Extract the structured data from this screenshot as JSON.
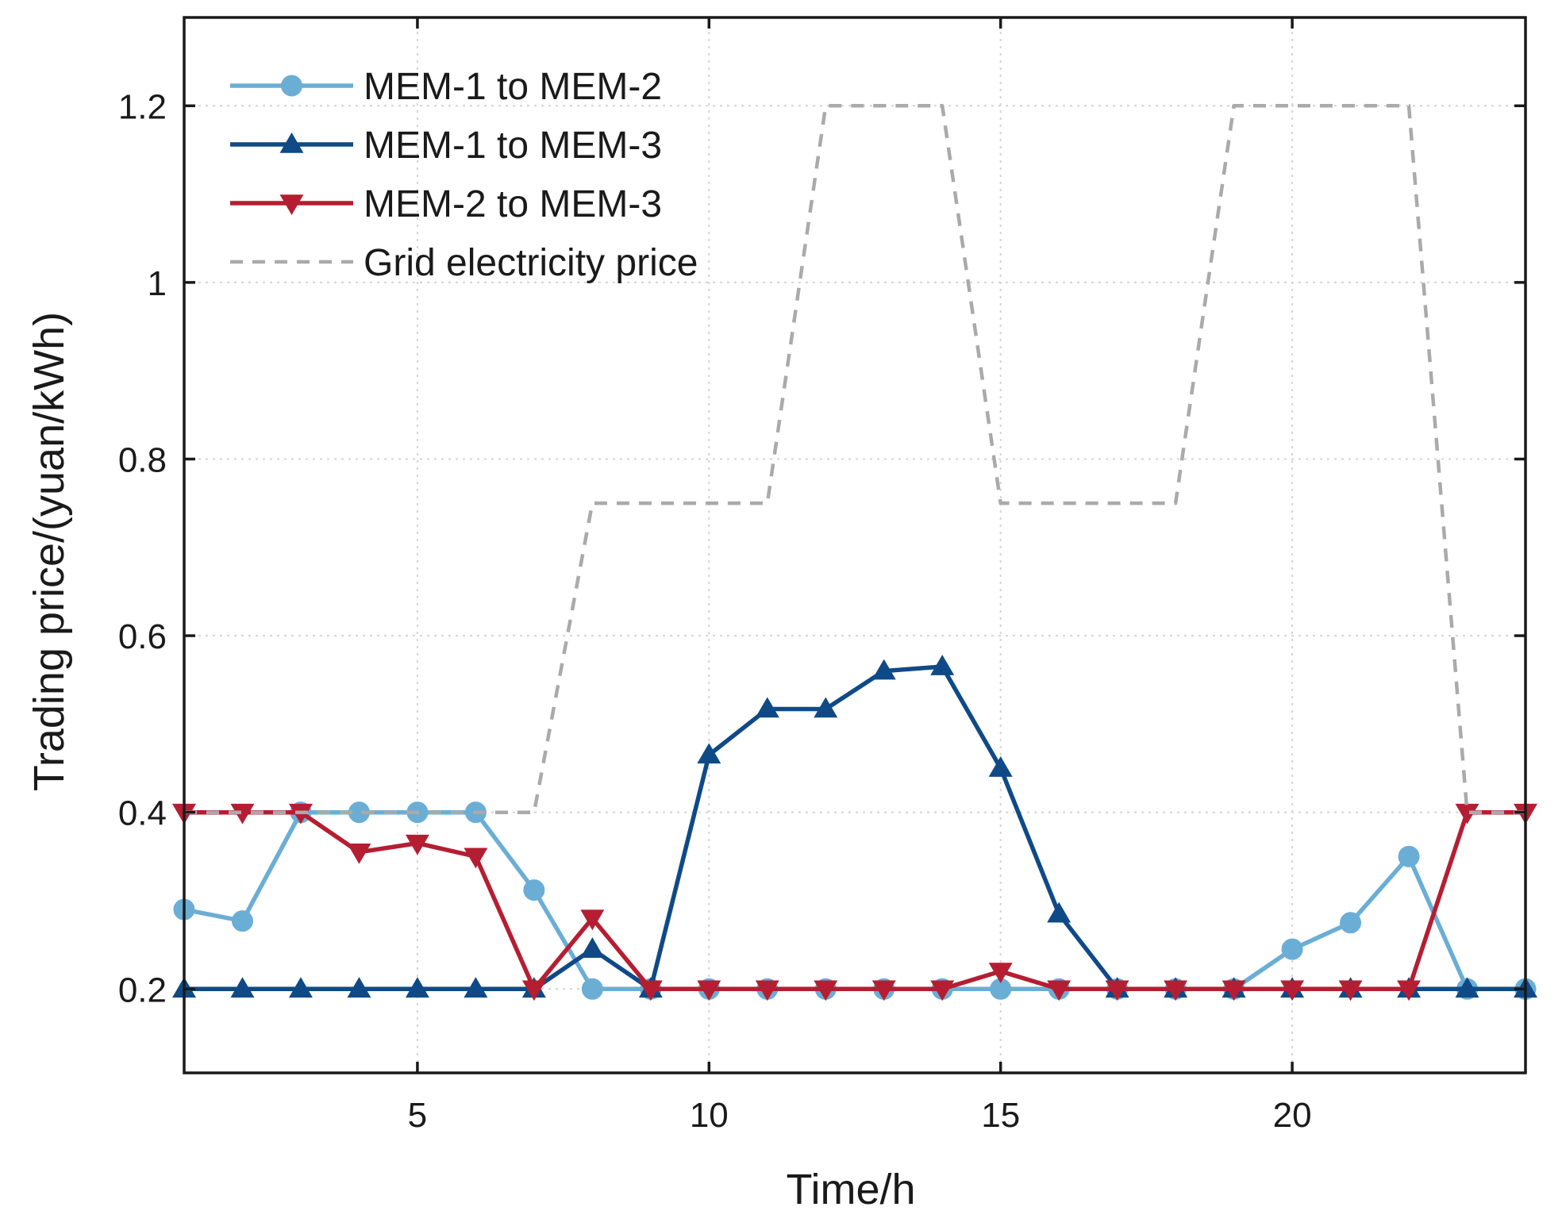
{
  "chart_data": {
    "type": "line",
    "title": "",
    "xlabel": "Time/h",
    "ylabel": "Trading price/(yuan/kWh)",
    "xlim": [
      1,
      24
    ],
    "ylim": [
      0.105,
      1.3
    ],
    "xticks": [
      5,
      10,
      15,
      20
    ],
    "yticks": [
      0.2,
      0.4,
      0.6,
      0.8,
      1,
      1.2
    ],
    "ytick_labels": [
      "0.2",
      "0.4",
      "0.6",
      "0.8",
      "1",
      "1.2"
    ],
    "grid": true,
    "legend_position": "top-left",
    "x": [
      1,
      2,
      3,
      4,
      5,
      6,
      7,
      8,
      9,
      10,
      11,
      12,
      13,
      14,
      15,
      16,
      17,
      18,
      19,
      20,
      21,
      22,
      23,
      24
    ],
    "series": [
      {
        "name": "MEM-1 to MEM-2",
        "color": "#6AAED6",
        "marker": "circle",
        "style": "solid",
        "values": [
          0.29,
          0.277,
          0.4,
          0.4,
          0.4,
          0.4,
          0.312,
          0.2,
          0.2,
          0.2,
          0.2,
          0.2,
          0.2,
          0.2,
          0.2,
          0.2,
          0.2,
          0.2,
          0.2,
          0.245,
          0.275,
          0.35,
          0.2,
          0.2
        ]
      },
      {
        "name": "MEM-1 to MEM-3",
        "color": "#0F4A87",
        "marker": "triangle-up",
        "style": "solid",
        "values": [
          0.2,
          0.2,
          0.2,
          0.2,
          0.2,
          0.2,
          0.2,
          0.245,
          0.2,
          0.465,
          0.517,
          0.517,
          0.56,
          0.565,
          0.45,
          0.285,
          0.2,
          0.2,
          0.2,
          0.2,
          0.2,
          0.2,
          0.2,
          0.2
        ]
      },
      {
        "name": "MEM-2 to MEM-3",
        "color": "#B51E32",
        "marker": "triangle-down",
        "style": "solid",
        "values": [
          0.4,
          0.4,
          0.4,
          0.355,
          0.365,
          0.35,
          0.2,
          0.28,
          0.2,
          0.2,
          0.2,
          0.2,
          0.2,
          0.2,
          0.22,
          0.2,
          0.2,
          0.2,
          0.2,
          0.2,
          0.2,
          0.2,
          0.4,
          0.4
        ]
      },
      {
        "name": "Grid electricity price",
        "color": "#AAAAAA",
        "marker": "none",
        "style": "dashed",
        "values": [
          0.4,
          0.4,
          0.4,
          0.4,
          0.4,
          0.4,
          0.4,
          0.75,
          0.75,
          0.75,
          0.75,
          1.2,
          1.2,
          1.2,
          0.75,
          0.75,
          0.75,
          0.75,
          1.2,
          1.2,
          1.2,
          1.2,
          0.4,
          0.4
        ]
      }
    ]
  }
}
